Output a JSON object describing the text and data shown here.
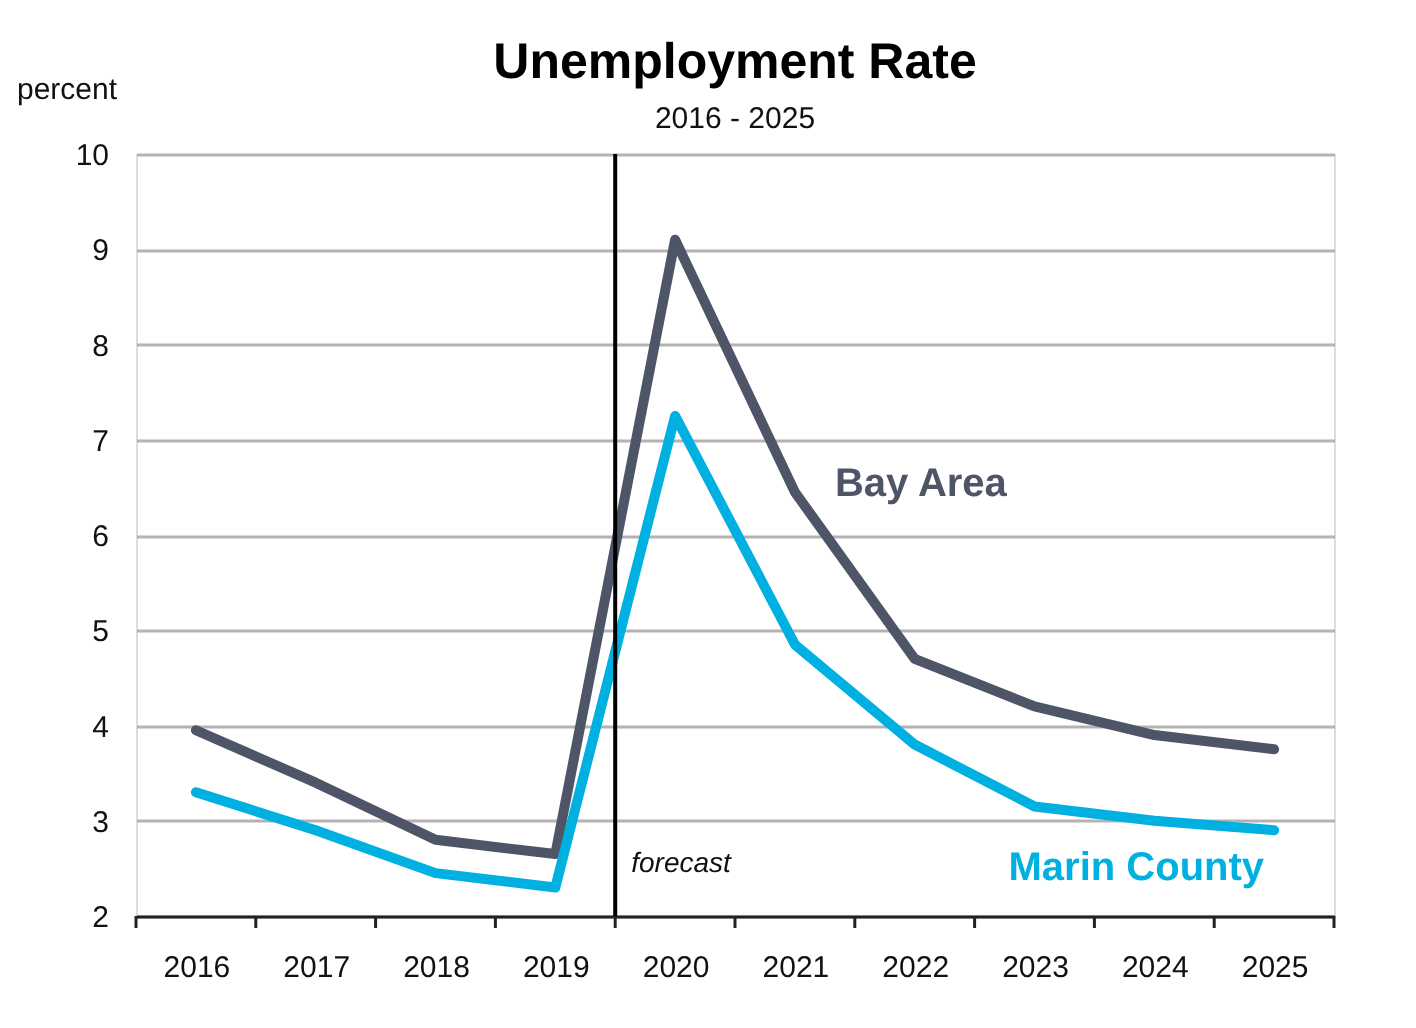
{
  "chart_data": {
    "type": "line",
    "title": "Unemployment Rate",
    "subtitle": "2016 - 2025",
    "ylabel": "percent",
    "x": [
      2016,
      2017,
      2018,
      2019,
      2020,
      2021,
      2022,
      2023,
      2024,
      2025
    ],
    "series": [
      {
        "name": "Bay Area",
        "color": "#4d5566",
        "values": [
          3.95,
          3.4,
          2.8,
          2.65,
          9.1,
          6.45,
          4.7,
          4.2,
          3.9,
          3.75
        ]
      },
      {
        "name": "Marin County",
        "color": "#00b0e0",
        "values": [
          3.3,
          2.9,
          2.45,
          2.3,
          7.25,
          4.85,
          3.8,
          3.15,
          3.0,
          2.9
        ]
      }
    ],
    "xlim": [
      2015.5,
      2025.5
    ],
    "xticks": [
      {
        "value": 2015.5,
        "label": null
      },
      2016,
      {
        "value": 2016.5,
        "label": null
      },
      2017,
      {
        "value": 2017.5,
        "label": null
      },
      2018,
      {
        "value": 2018.5,
        "label": null
      },
      2019,
      {
        "value": 2019.5,
        "label": null
      },
      2020,
      {
        "value": 2020.5,
        "label": null
      },
      2021,
      {
        "value": 2021.5,
        "label": null
      },
      2022,
      {
        "value": 2022.5,
        "label": null
      },
      2023,
      {
        "value": 2023.5,
        "label": null
      },
      2024,
      {
        "value": 2024.5,
        "label": null
      },
      2025,
      {
        "value": 2025.5,
        "label": null
      }
    ],
    "ylim": [
      2,
      10
    ],
    "yticks": [
      2,
      3,
      4,
      5,
      6,
      7,
      8,
      9,
      10
    ],
    "ref_lines": [
      {
        "axis": "x",
        "value": 2019.5,
        "label": "forecast",
        "color": "#000000"
      }
    ],
    "grid": "y",
    "legend": false,
    "marker": "none",
    "line_style": "solid"
  }
}
